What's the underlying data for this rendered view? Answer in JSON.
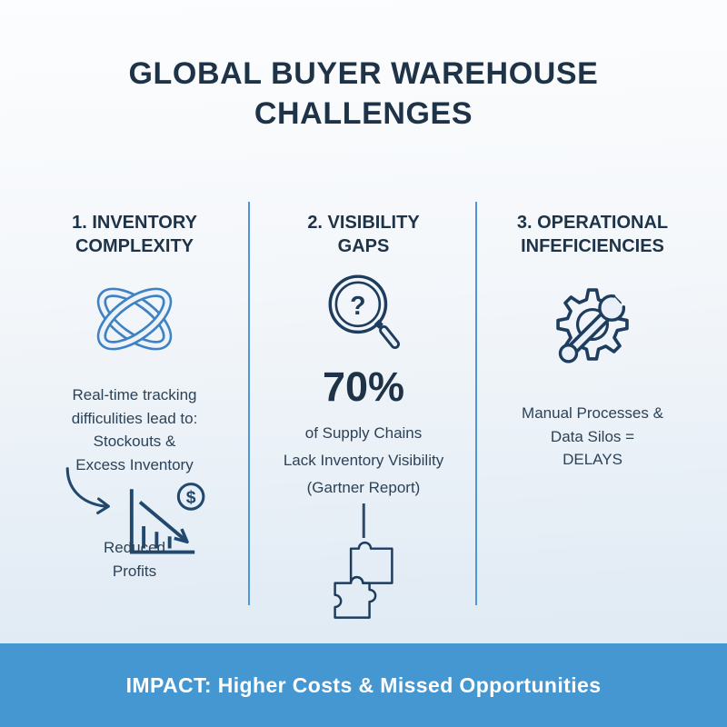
{
  "title": "GLOBAL BUYER WAREHOUSE\nCHALLENGES",
  "columns": [
    {
      "heading": "1. INVENTORY\nCOMPLEXITY",
      "icon": "tangled-knot-icon",
      "body": "Real-time tracking\ndifficulities lead to:\nStockouts &\nExcess Inventory",
      "result": "Reduced\nProfits"
    },
    {
      "heading": "2. VISIBILITY\nGAPS",
      "icon": "magnifier-question-icon",
      "stat": "70%",
      "caption1": "of Supply Chains",
      "caption2": "Lack Inventory Visibility",
      "caption3": "(Gartner Report)",
      "bottom_icon": "puzzle-pieces-icon"
    },
    {
      "heading": "3. OPERATIONAL\nINFEFICIENCIES",
      "icon": "gear-wrench-icon",
      "body": "Manual Processes &\nData Silos =\nDELAYS"
    }
  ],
  "glyphs": {
    "question": "?",
    "dollar": "$"
  },
  "banner": "IMPACT: Higher Costs & Missed Opportunities",
  "colors": {
    "title_navy": "#1e3347",
    "body_text": "#2c4257",
    "icon_navy": "#1e3d5e",
    "chart_navy": "#21486e",
    "knot_blue": "#3e82c4",
    "divider_blue": "#4e95da",
    "banner_blue": "#4597d2",
    "banner_text": "#ffffff"
  }
}
